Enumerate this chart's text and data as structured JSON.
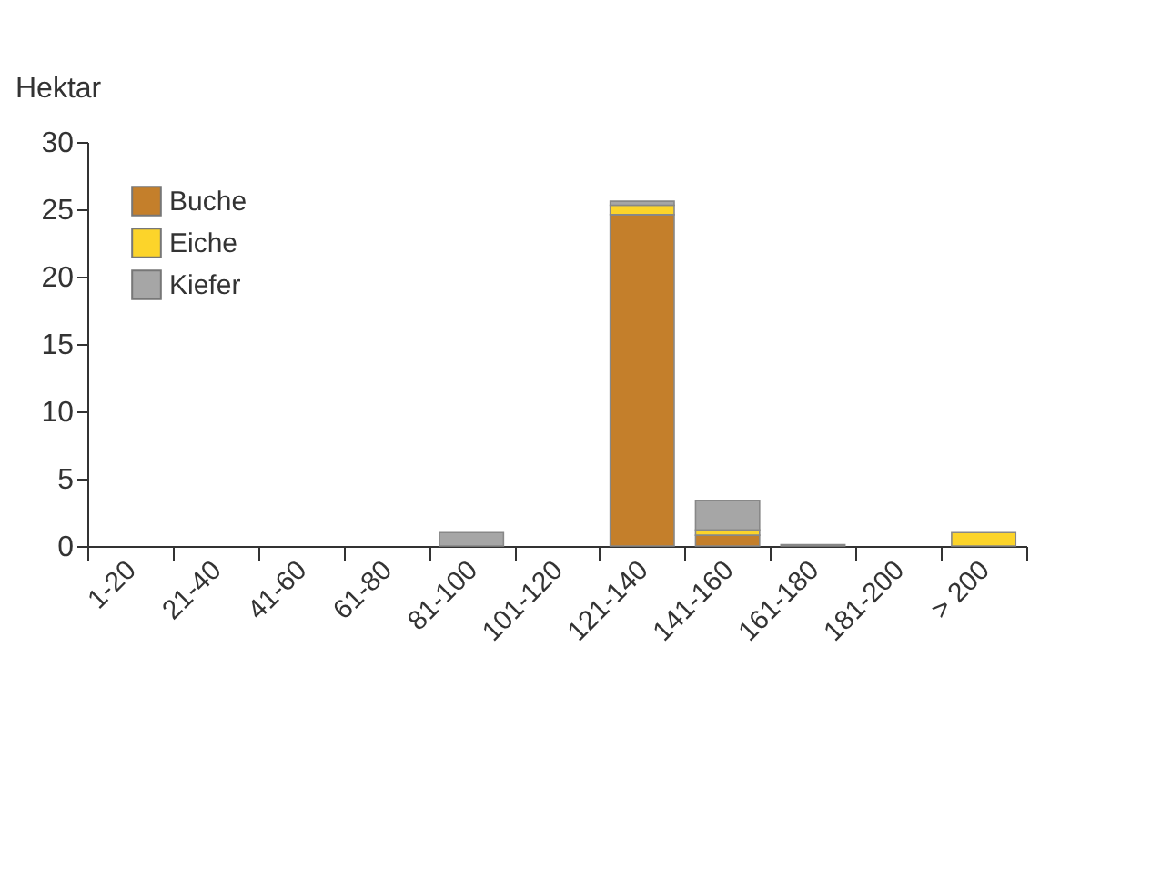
{
  "chart_data": {
    "type": "bar",
    "ylabel": "Hektar",
    "stacked": true,
    "categories": [
      "1-20",
      "21-40",
      "41-60",
      "61-80",
      "81-100",
      "101-120",
      "121-140",
      "141-160",
      "161-180",
      "181-200",
      "> 200"
    ],
    "series": [
      {
        "name": "Buche",
        "color": "#c47f2b",
        "values": [
          0,
          0,
          0,
          0,
          0,
          0,
          24.6,
          0.8,
          0,
          0,
          0
        ]
      },
      {
        "name": "Eiche",
        "color": "#fcd42a",
        "values": [
          0,
          0,
          0,
          0,
          0,
          0,
          0.7,
          0.4,
          0.1,
          0,
          1.0
        ]
      },
      {
        "name": "Kiefer",
        "color": "#a6a6a6",
        "values": [
          0,
          0,
          0,
          0,
          1.0,
          0,
          0.3,
          2.2,
          0,
          0,
          0
        ]
      }
    ],
    "ylim": [
      0,
      30
    ],
    "yticks": [
      0,
      5,
      10,
      15,
      20,
      25,
      30
    ],
    "grid": false,
    "legend": "top left"
  }
}
